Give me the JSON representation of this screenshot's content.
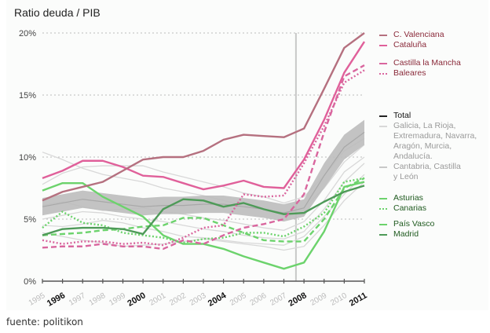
{
  "title": "Ratio deuda / PIB",
  "source": "fuente: politikon",
  "chart_data": {
    "type": "line",
    "title": "Ratio deuda / PIB",
    "xlabel": "",
    "ylabel": "",
    "ylim": [
      0,
      20
    ],
    "yticks": [
      "0%",
      "5%",
      "10%",
      "15%",
      "20%"
    ],
    "ytick_values": [
      0,
      5,
      10,
      15,
      20
    ],
    "grid": "horizontal dotted",
    "legend_position": "right",
    "x": [
      "1995",
      "1996",
      "1997",
      "1998",
      "1999",
      "2000",
      "2001",
      "2002",
      "2003",
      "2004",
      "2005",
      "2006",
      "2007",
      "2008",
      "2009",
      "2010",
      "2011"
    ],
    "bold_x": [
      "1996",
      "2000",
      "2004",
      "2008",
      "2011"
    ],
    "marker_line_x": 2007.6,
    "series": [
      {
        "key": "gray1",
        "style": "solid",
        "color": "#d8d8d8",
        "values": [
          10.4,
          9.8,
          9.1,
          8.6,
          8.3,
          8.0,
          7.5,
          7.2,
          6.9,
          6.5,
          6.1,
          5.8,
          5.4,
          5.9,
          7.5,
          9.6,
          11.0
        ]
      },
      {
        "key": "gray2",
        "style": "solid",
        "color": "#d8d8d8",
        "values": [
          7.8,
          8.7,
          9.2,
          9.3,
          9.3,
          9.3,
          8.8,
          8.4,
          8.0,
          7.6,
          7.1,
          6.8,
          6.3,
          6.8,
          8.5,
          10.5,
          11.5
        ]
      },
      {
        "key": "gray3",
        "style": "solid",
        "color": "#d8d8d8",
        "values": [
          5.0,
          5.3,
          5.6,
          5.5,
          5.2,
          5.0,
          4.8,
          4.5,
          4.2,
          4.0,
          3.7,
          3.5,
          3.4,
          4.0,
          5.8,
          8.0,
          9.5
        ]
      },
      {
        "key": "gray4",
        "style": "solid",
        "color": "#d8d8d8",
        "values": [
          3.9,
          3.6,
          3.3,
          3.1,
          2.8,
          2.9,
          3.0,
          3.2,
          3.4,
          3.2,
          3.0,
          2.8,
          2.5,
          2.8,
          4.5,
          6.5,
          8.0
        ]
      },
      {
        "key": "gray5",
        "style": "solid",
        "color": "#d8d8d8",
        "values": [
          4.5,
          4.4,
          4.6,
          4.9,
          4.7,
          4.3,
          4.0,
          3.6,
          3.5,
          3.3,
          3.1,
          3.0,
          2.9,
          3.6,
          5.2,
          7.0,
          8.6
        ]
      },
      {
        "key": "gray6",
        "style": "solid",
        "color": "#d8d8d8",
        "values": [
          6.1,
          6.4,
          6.0,
          5.7,
          5.8,
          5.9,
          5.6,
          5.4,
          5.1,
          4.9,
          4.6,
          4.3,
          4.1,
          4.8,
          6.5,
          8.8,
          10.0
        ]
      },
      {
        "key": "total",
        "name": "Total",
        "style": "band",
        "color": "#bcbcbc",
        "values": [
          6.0,
          6.3,
          6.6,
          6.4,
          6.2,
          6.0,
          6.1,
          6.1,
          6.2,
          6.2,
          6.0,
          5.8,
          5.5,
          5.9,
          8.5,
          10.8,
          12.0
        ]
      },
      {
        "key": "asturias",
        "name": "Asturias",
        "style": "dashed",
        "color": "#6cd36c",
        "values": [
          3.7,
          3.8,
          3.9,
          4.1,
          4.2,
          4.4,
          4.5,
          5.1,
          5.1,
          4.5,
          3.9,
          3.3,
          3.2,
          3.2,
          5.0,
          7.5,
          8.3
        ]
      },
      {
        "key": "canarias",
        "name": "Canarias",
        "style": "dotted",
        "color": "#6cd36c",
        "values": [
          4.3,
          5.6,
          4.7,
          4.5,
          3.9,
          3.7,
          3.5,
          3.1,
          3.4,
          3.5,
          3.9,
          3.9,
          3.6,
          4.4,
          5.5,
          8.0,
          8.3
        ]
      },
      {
        "key": "paisvasco",
        "name": "País Vasco",
        "style": "solid",
        "color": "#6cd36c",
        "values": [
          7.3,
          7.9,
          7.9,
          6.8,
          6.0,
          5.2,
          3.7,
          3.0,
          3.0,
          2.6,
          2.0,
          1.5,
          1.0,
          1.5,
          4.0,
          7.6,
          8.0
        ]
      },
      {
        "key": "madrid",
        "name": "Madrid",
        "style": "solid",
        "color": "#4e9a58",
        "values": [
          3.7,
          4.2,
          4.3,
          4.3,
          4.2,
          3.8,
          5.8,
          6.6,
          6.5,
          6.0,
          6.3,
          5.8,
          5.4,
          5.5,
          6.4,
          7.2,
          7.7
        ]
      },
      {
        "key": "castilla",
        "name": "Castilla la Mancha",
        "style": "dashed",
        "color": "#d9669e",
        "values": [
          2.7,
          2.8,
          2.8,
          3.0,
          2.8,
          2.8,
          2.6,
          3.3,
          3.0,
          3.7,
          4.3,
          4.6,
          5.0,
          7.0,
          12.0,
          16.5,
          17.4
        ]
      },
      {
        "key": "baleares",
        "name": "Baleares",
        "style": "dotted",
        "color": "#d9669e",
        "values": [
          3.3,
          3.0,
          3.2,
          3.2,
          3.0,
          3.1,
          2.9,
          3.5,
          4.3,
          4.5,
          7.0,
          6.8,
          6.9,
          9.5,
          12.5,
          16.0,
          17.0
        ]
      },
      {
        "key": "cataluna",
        "name": "Cataluña",
        "style": "solid",
        "color": "#e0609a",
        "values": [
          8.3,
          8.9,
          9.7,
          9.7,
          9.2,
          8.5,
          8.4,
          7.9,
          7.4,
          7.7,
          8.1,
          7.6,
          7.5,
          9.8,
          13.0,
          16.8,
          19.3
        ]
      },
      {
        "key": "valenciana",
        "name": "C. Valenciana",
        "style": "solid",
        "color": "#b5707f",
        "values": [
          6.5,
          7.2,
          7.6,
          8.0,
          8.9,
          9.8,
          10.0,
          10.0,
          10.5,
          11.4,
          11.8,
          11.7,
          11.6,
          12.3,
          15.5,
          18.8,
          20.0
        ]
      }
    ],
    "legend": [
      {
        "label": "C. Valenciana",
        "color": "#b5707f",
        "style": "solid",
        "text_color": "#8a2a3a"
      },
      {
        "label": "Cataluña",
        "color": "#e0609a",
        "style": "solid",
        "text_color": "#8a2a3a"
      },
      {
        "label": "Castilla la Mancha",
        "color": "#d9669e",
        "style": "dashed",
        "text_color": "#8a2a3a"
      },
      {
        "label": "Baleares",
        "color": "#d9669e",
        "style": "dotted",
        "text_color": "#8a2a3a"
      },
      {
        "label": "Total",
        "color": "#222222",
        "style": "solid",
        "text_color": "#111111"
      },
      {
        "label": "Galicia, La Rioja, Extremadura, Navarra, Aragón, Murcia, Andalucía.",
        "color": "#d8d8d8",
        "style": "solid",
        "text_color": "#9a9a9a"
      },
      {
        "label": "Cantabria, Castilla y León",
        "color": "#c8c8c8",
        "style": "solid",
        "text_color": "#9a9a9a"
      },
      {
        "label": "Asturias",
        "color": "#6cd36c",
        "style": "dashed",
        "text_color": "#1f5a1f"
      },
      {
        "label": "Canarias",
        "color": "#6cd36c",
        "style": "dotted",
        "text_color": "#1f5a1f"
      },
      {
        "label": "País Vasco",
        "color": "#6cd36c",
        "style": "solid",
        "text_color": "#1f5a1f"
      },
      {
        "label": "Madrid",
        "color": "#4e9a58",
        "style": "solid",
        "text_color": "#1f5a1f"
      }
    ]
  }
}
